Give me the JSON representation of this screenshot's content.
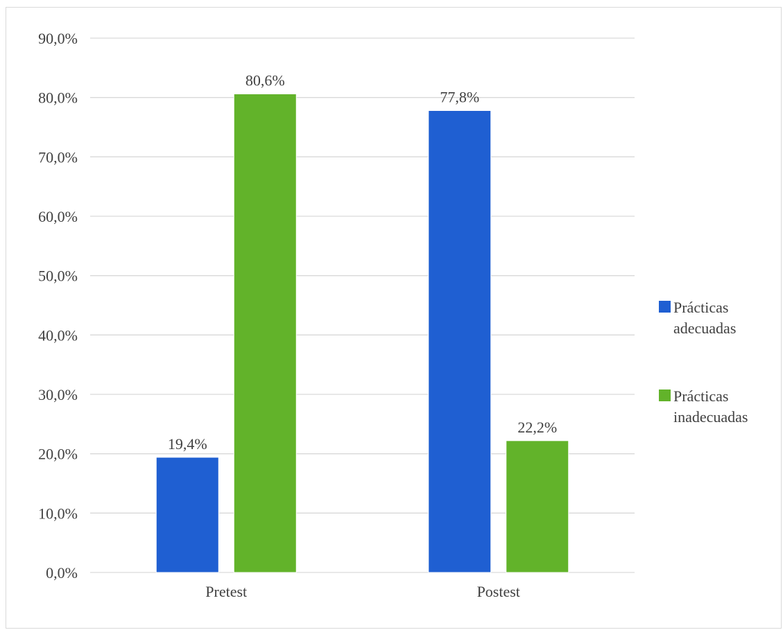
{
  "chart_data": {
    "type": "bar",
    "categories": [
      "Pretest",
      "Postest"
    ],
    "series": [
      {
        "name": "Prácticas adecuadas",
        "values": [
          19.4,
          77.8
        ],
        "labels": [
          "19,4%",
          "77,8%"
        ],
        "color": "#1f5fd2"
      },
      {
        "name": "Prácticas inadecuadas",
        "values": [
          80.6,
          22.2
        ],
        "labels": [
          "80,6%",
          "22,2%"
        ],
        "color": "#62b32a"
      }
    ],
    "ylim": [
      0,
      90
    ],
    "yticks": [
      0,
      10,
      20,
      30,
      40,
      50,
      60,
      70,
      80,
      90
    ],
    "ytick_labels": [
      "0,0%",
      "10,0%",
      "20,0%",
      "30,0%",
      "40,0%",
      "50,0%",
      "60,0%",
      "70,0%",
      "80,0%",
      "90,0%"
    ],
    "grid": true,
    "legend_position": "right",
    "legend": {
      "lines": [
        [
          "Prácticas",
          "adecuadas"
        ],
        [
          "Prácticas",
          "inadecuadas"
        ]
      ]
    }
  }
}
